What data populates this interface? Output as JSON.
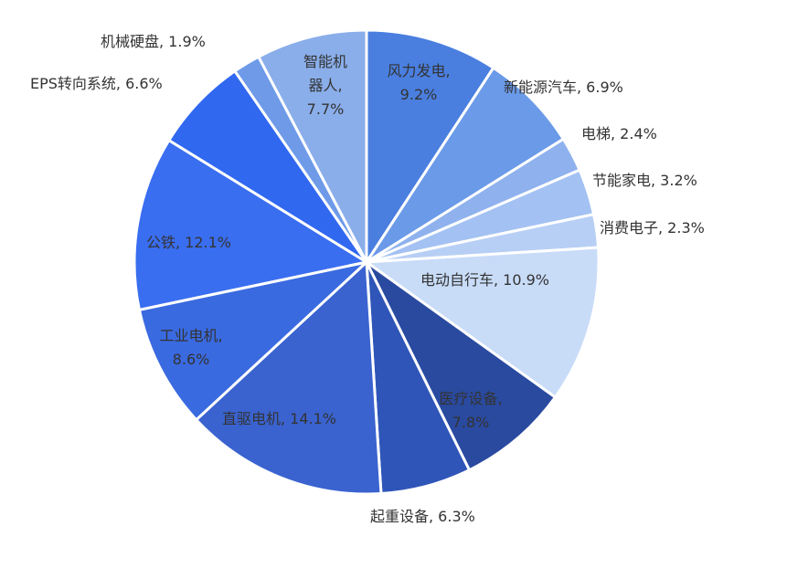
{
  "chart_data": {
    "type": "pie",
    "values": [
      9.2,
      6.9,
      2.4,
      3.2,
      2.3,
      10.9,
      7.8,
      6.3,
      14.1,
      8.6,
      12.1,
      6.6,
      1.9,
      7.7
    ],
    "value_labels": [
      [
        "风力发电,",
        "9.2%"
      ],
      [
        "新能源汽车, 6.9%"
      ],
      [
        "电梯, 2.4%"
      ],
      [
        "节能家电, 3.2%"
      ],
      [
        "消费电子, 2.3%"
      ],
      [
        "电动自行车, 10.9%"
      ],
      [
        "医疗设备,",
        "7.8%"
      ],
      [
        "起重设备, 6.3%"
      ],
      [
        "直驱电机, 14.1%"
      ],
      [
        "工业电机,",
        "8.6%"
      ],
      [
        "公铁, 12.1%"
      ],
      [
        "EPS转向系统, 6.6%"
      ],
      [
        "机械硬盘, 1.9%"
      ],
      [
        "智能机",
        "器人,",
        "7.7%"
      ]
    ],
    "colors": [
      "#4a7fe0",
      "#6a9ae8",
      "#8fb2ee",
      "#a3c1f2",
      "#b8cff5",
      "#c8dcf8",
      "#2a4aa0",
      "#2f55b8",
      "#3a63d0",
      "#3a6ae0",
      "#3a6ef0",
      "#3068f0",
      "#6e9ae8",
      "#8aaeea"
    ]
  }
}
